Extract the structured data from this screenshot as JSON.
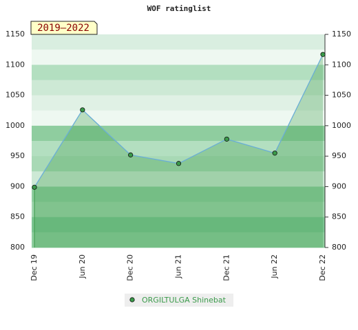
{
  "chart_data": {
    "type": "area",
    "title": "WOF ratinglist",
    "badge": "2019–2022",
    "categories": [
      "Dec 19",
      "Jun 20",
      "Dec 20",
      "Jun 21",
      "Dec 21",
      "Jun 22",
      "Dec 22"
    ],
    "series": [
      {
        "name": "ORGILTULGA Shinebat",
        "color": "#3a9a4a",
        "values": [
          899,
          1026,
          952,
          938,
          978,
          955,
          1117
        ]
      }
    ],
    "ylim": [
      800,
      1150
    ],
    "yticks": [
      800,
      850,
      900,
      950,
      1000,
      1050,
      1100,
      1150
    ]
  }
}
